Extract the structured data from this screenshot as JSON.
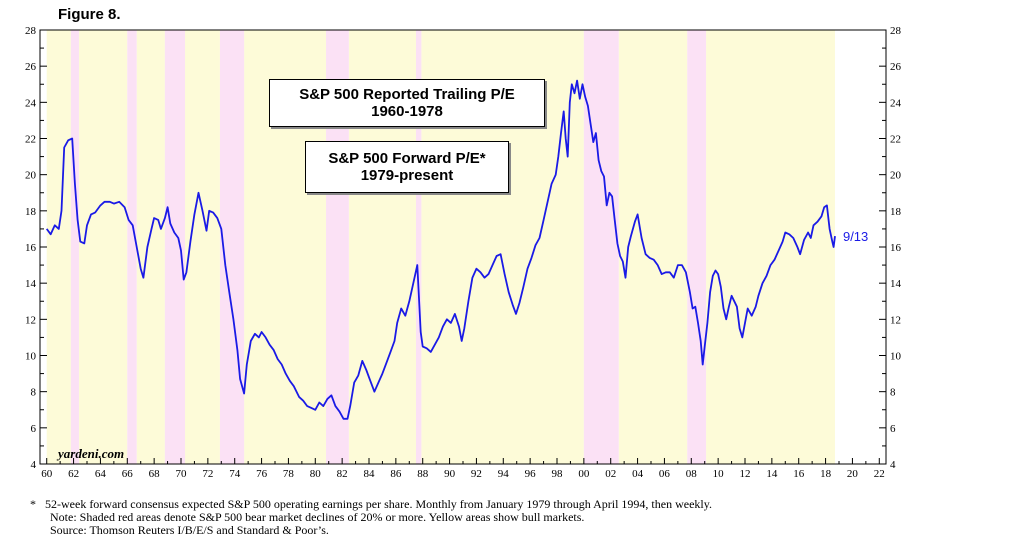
{
  "figure_label": "Figure 8.",
  "chart_data": {
    "type": "line",
    "title_boxes": [
      {
        "line1": "S&P 500 Reported Trailing P/E",
        "line2": "1960-1978"
      },
      {
        "line1": "S&P 500 Forward P/E*",
        "line2": "1979-present"
      }
    ],
    "watermark": "yardeni.com",
    "end_label": "9/13",
    "ylim": [
      4,
      28
    ],
    "xlim": [
      1959.5,
      2022.5
    ],
    "y_ticks": [
      "4",
      "6",
      "8",
      "10",
      "12",
      "14",
      "16",
      "18",
      "20",
      "22",
      "24",
      "26",
      "28"
    ],
    "x_ticks": [
      "60",
      "62",
      "64",
      "66",
      "68",
      "70",
      "72",
      "74",
      "76",
      "78",
      "80",
      "82",
      "84",
      "86",
      "88",
      "90",
      "92",
      "94",
      "96",
      "98",
      "00",
      "02",
      "04",
      "06",
      "08",
      "10",
      "12",
      "14",
      "16",
      "18",
      "20",
      "22"
    ],
    "line_color": "#1a1ae6",
    "bull_color": "#fdfbd8",
    "bear_color": "#fbe1f5",
    "bull_periods": [
      [
        1960.0,
        1961.8
      ],
      [
        1962.4,
        1966.0
      ],
      [
        1966.7,
        1968.8
      ],
      [
        1970.3,
        1972.9
      ],
      [
        1974.7,
        1980.8
      ],
      [
        1982.5,
        1987.5
      ],
      [
        1987.9,
        2000.0
      ],
      [
        2002.6,
        2007.7
      ],
      [
        2009.1,
        2018.7
      ]
    ],
    "bear_periods": [
      [
        1961.8,
        1962.4
      ],
      [
        1966.0,
        1966.7
      ],
      [
        1968.8,
        1970.3
      ],
      [
        1972.9,
        1974.7
      ],
      [
        1980.8,
        1982.5
      ],
      [
        1987.5,
        1987.9
      ],
      [
        2000.0,
        2002.6
      ],
      [
        2007.7,
        2009.1
      ]
    ],
    "series": [
      {
        "points": [
          [
            1960.0,
            17.0
          ],
          [
            1960.3,
            16.7
          ],
          [
            1960.6,
            17.2
          ],
          [
            1960.9,
            17.0
          ],
          [
            1961.1,
            18.0
          ],
          [
            1961.3,
            21.5
          ],
          [
            1961.6,
            21.9
          ],
          [
            1961.9,
            22.0
          ],
          [
            1962.1,
            19.5
          ],
          [
            1962.3,
            17.5
          ],
          [
            1962.5,
            16.3
          ],
          [
            1962.8,
            16.2
          ],
          [
            1963.0,
            17.2
          ],
          [
            1963.3,
            17.8
          ],
          [
            1963.6,
            17.9
          ],
          [
            1964.0,
            18.3
          ],
          [
            1964.3,
            18.5
          ],
          [
            1964.7,
            18.5
          ],
          [
            1965.0,
            18.4
          ],
          [
            1965.4,
            18.5
          ],
          [
            1965.8,
            18.2
          ],
          [
            1966.1,
            17.5
          ],
          [
            1966.4,
            17.2
          ],
          [
            1966.7,
            16.0
          ],
          [
            1967.0,
            14.8
          ],
          [
            1967.2,
            14.3
          ],
          [
            1967.5,
            16.0
          ],
          [
            1967.8,
            17.0
          ],
          [
            1968.0,
            17.6
          ],
          [
            1968.3,
            17.5
          ],
          [
            1968.5,
            17.0
          ],
          [
            1968.8,
            17.6
          ],
          [
            1969.0,
            18.2
          ],
          [
            1969.2,
            17.3
          ],
          [
            1969.5,
            16.8
          ],
          [
            1969.8,
            16.5
          ],
          [
            1970.0,
            15.8
          ],
          [
            1970.2,
            14.2
          ],
          [
            1970.4,
            14.6
          ],
          [
            1970.7,
            16.3
          ],
          [
            1971.0,
            17.8
          ],
          [
            1971.3,
            19.0
          ],
          [
            1971.6,
            18.0
          ],
          [
            1971.9,
            16.9
          ],
          [
            1972.1,
            18.0
          ],
          [
            1972.4,
            17.9
          ],
          [
            1972.7,
            17.6
          ],
          [
            1973.0,
            17.0
          ],
          [
            1973.3,
            15.0
          ],
          [
            1973.6,
            13.5
          ],
          [
            1973.9,
            12.0
          ],
          [
            1974.2,
            10.3
          ],
          [
            1974.4,
            8.7
          ],
          [
            1974.7,
            7.9
          ],
          [
            1974.9,
            9.5
          ],
          [
            1975.2,
            10.8
          ],
          [
            1975.5,
            11.2
          ],
          [
            1975.8,
            11.0
          ],
          [
            1976.0,
            11.3
          ],
          [
            1976.3,
            11.0
          ],
          [
            1976.6,
            10.6
          ],
          [
            1976.9,
            10.3
          ],
          [
            1977.2,
            9.8
          ],
          [
            1977.5,
            9.5
          ],
          [
            1977.8,
            9.0
          ],
          [
            1978.1,
            8.6
          ],
          [
            1978.4,
            8.3
          ],
          [
            1978.8,
            7.7
          ],
          [
            1979.1,
            7.5
          ],
          [
            1979.4,
            7.2
          ],
          [
            1979.7,
            7.1
          ],
          [
            1980.0,
            7.0
          ],
          [
            1980.3,
            7.4
          ],
          [
            1980.6,
            7.2
          ],
          [
            1980.9,
            7.6
          ],
          [
            1981.2,
            7.8
          ],
          [
            1981.5,
            7.2
          ],
          [
            1981.8,
            6.9
          ],
          [
            1982.1,
            6.5
          ],
          [
            1982.4,
            6.5
          ],
          [
            1982.6,
            7.2
          ],
          [
            1982.9,
            8.5
          ],
          [
            1983.2,
            8.9
          ],
          [
            1983.5,
            9.7
          ],
          [
            1983.8,
            9.2
          ],
          [
            1984.1,
            8.6
          ],
          [
            1984.4,
            8.0
          ],
          [
            1984.7,
            8.5
          ],
          [
            1985.0,
            9.0
          ],
          [
            1985.3,
            9.6
          ],
          [
            1985.6,
            10.2
          ],
          [
            1985.9,
            10.8
          ],
          [
            1986.1,
            11.8
          ],
          [
            1986.4,
            12.6
          ],
          [
            1986.7,
            12.2
          ],
          [
            1987.0,
            13.0
          ],
          [
            1987.3,
            14.0
          ],
          [
            1987.6,
            15.0
          ],
          [
            1987.85,
            11.3
          ],
          [
            1988.0,
            10.5
          ],
          [
            1988.3,
            10.4
          ],
          [
            1988.6,
            10.2
          ],
          [
            1988.9,
            10.6
          ],
          [
            1989.2,
            11.0
          ],
          [
            1989.5,
            11.6
          ],
          [
            1989.8,
            12.0
          ],
          [
            1990.1,
            11.8
          ],
          [
            1990.4,
            12.3
          ],
          [
            1990.7,
            11.6
          ],
          [
            1990.9,
            10.8
          ],
          [
            1991.1,
            11.5
          ],
          [
            1991.4,
            13.0
          ],
          [
            1991.7,
            14.3
          ],
          [
            1992.0,
            14.8
          ],
          [
            1992.3,
            14.6
          ],
          [
            1992.6,
            14.3
          ],
          [
            1992.9,
            14.5
          ],
          [
            1993.2,
            15.0
          ],
          [
            1993.5,
            15.5
          ],
          [
            1993.8,
            15.6
          ],
          [
            1994.1,
            14.5
          ],
          [
            1994.4,
            13.5
          ],
          [
            1994.7,
            12.8
          ],
          [
            1994.95,
            12.3
          ],
          [
            1995.2,
            12.9
          ],
          [
            1995.5,
            13.8
          ],
          [
            1995.8,
            14.8
          ],
          [
            1996.1,
            15.4
          ],
          [
            1996.4,
            16.1
          ],
          [
            1996.7,
            16.5
          ],
          [
            1997.0,
            17.5
          ],
          [
            1997.3,
            18.5
          ],
          [
            1997.6,
            19.5
          ],
          [
            1997.9,
            20.0
          ],
          [
            1998.1,
            21.0
          ],
          [
            1998.3,
            22.3
          ],
          [
            1998.5,
            23.5
          ],
          [
            1998.65,
            22.0
          ],
          [
            1998.8,
            21.0
          ],
          [
            1998.95,
            24.0
          ],
          [
            1999.1,
            25.0
          ],
          [
            1999.3,
            24.5
          ],
          [
            1999.5,
            25.2
          ],
          [
            1999.7,
            24.2
          ],
          [
            1999.9,
            25.0
          ],
          [
            2000.1,
            24.3
          ],
          [
            2000.3,
            23.8
          ],
          [
            2000.5,
            22.8
          ],
          [
            2000.7,
            21.8
          ],
          [
            2000.9,
            22.3
          ],
          [
            2001.1,
            20.8
          ],
          [
            2001.3,
            20.2
          ],
          [
            2001.5,
            19.9
          ],
          [
            2001.7,
            18.3
          ],
          [
            2001.9,
            19.0
          ],
          [
            2002.1,
            18.8
          ],
          [
            2002.3,
            17.5
          ],
          [
            2002.5,
            16.2
          ],
          [
            2002.7,
            15.5
          ],
          [
            2002.9,
            15.2
          ],
          [
            2003.1,
            14.3
          ],
          [
            2003.3,
            16.0
          ],
          [
            2003.5,
            16.6
          ],
          [
            2003.8,
            17.4
          ],
          [
            2004.0,
            17.8
          ],
          [
            2004.3,
            16.5
          ],
          [
            2004.6,
            15.6
          ],
          [
            2004.9,
            15.4
          ],
          [
            2005.2,
            15.3
          ],
          [
            2005.5,
            15.0
          ],
          [
            2005.8,
            14.5
          ],
          [
            2006.1,
            14.6
          ],
          [
            2006.4,
            14.6
          ],
          [
            2006.7,
            14.3
          ],
          [
            2007.0,
            15.0
          ],
          [
            2007.3,
            15.0
          ],
          [
            2007.6,
            14.6
          ],
          [
            2007.9,
            13.5
          ],
          [
            2008.1,
            12.6
          ],
          [
            2008.3,
            12.7
          ],
          [
            2008.5,
            11.8
          ],
          [
            2008.7,
            10.8
          ],
          [
            2008.85,
            9.5
          ],
          [
            2009.0,
            10.5
          ],
          [
            2009.2,
            11.8
          ],
          [
            2009.4,
            13.5
          ],
          [
            2009.6,
            14.4
          ],
          [
            2009.8,
            14.7
          ],
          [
            2010.0,
            14.5
          ],
          [
            2010.2,
            13.8
          ],
          [
            2010.4,
            12.6
          ],
          [
            2010.6,
            12.0
          ],
          [
            2010.8,
            12.7
          ],
          [
            2011.0,
            13.3
          ],
          [
            2011.2,
            13.0
          ],
          [
            2011.4,
            12.7
          ],
          [
            2011.6,
            11.5
          ],
          [
            2011.8,
            11.0
          ],
          [
            2012.0,
            11.8
          ],
          [
            2012.2,
            12.6
          ],
          [
            2012.5,
            12.2
          ],
          [
            2012.8,
            12.7
          ],
          [
            2013.0,
            13.3
          ],
          [
            2013.3,
            14.0
          ],
          [
            2013.6,
            14.4
          ],
          [
            2013.9,
            15.0
          ],
          [
            2014.2,
            15.3
          ],
          [
            2014.5,
            15.8
          ],
          [
            2014.8,
            16.3
          ],
          [
            2015.0,
            16.8
          ],
          [
            2015.3,
            16.7
          ],
          [
            2015.6,
            16.5
          ],
          [
            2015.9,
            16.0
          ],
          [
            2016.1,
            15.6
          ],
          [
            2016.4,
            16.4
          ],
          [
            2016.7,
            16.8
          ],
          [
            2016.9,
            16.5
          ],
          [
            2017.1,
            17.2
          ],
          [
            2017.4,
            17.4
          ],
          [
            2017.7,
            17.7
          ],
          [
            2017.9,
            18.2
          ],
          [
            2018.1,
            18.3
          ],
          [
            2018.3,
            17.0
          ],
          [
            2018.5,
            16.3
          ],
          [
            2018.6,
            16.0
          ],
          [
            2018.7,
            16.6
          ]
        ]
      }
    ]
  },
  "footnotes": [
    {
      "star": "*",
      "text": "52-week forward consensus expected S&P 500 operating earnings per share. Monthly from January 1979 through April 1994, then weekly."
    },
    {
      "star": "",
      "text": "Note: Shaded red areas denote S&P 500 bear market declines of 20% or more. Yellow areas show bull markets."
    },
    {
      "star": "",
      "text": "Source: Thomson Reuters I/B/E/S and Standard & Poor’s."
    }
  ]
}
